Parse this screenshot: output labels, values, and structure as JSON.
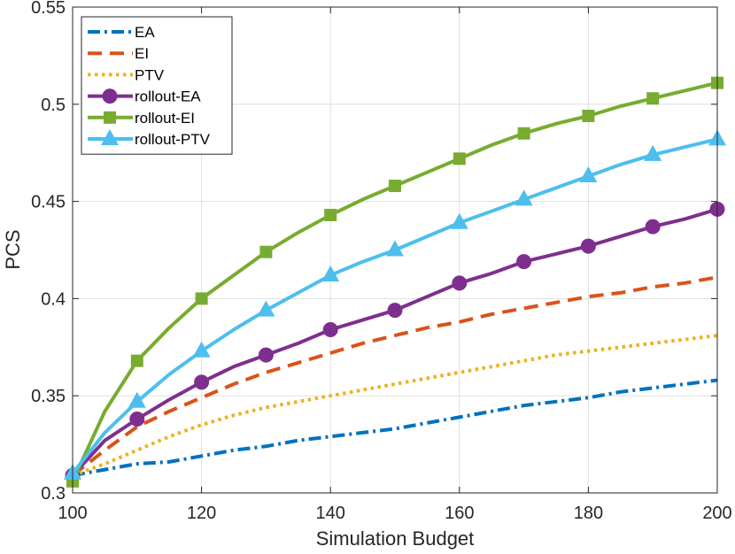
{
  "chart_data": {
    "type": "line",
    "title": "",
    "xlabel": "Simulation Budget",
    "ylabel": "PCS",
    "xlim": [
      100,
      200
    ],
    "ylim": [
      0.3,
      0.55
    ],
    "xticks": [
      100,
      120,
      140,
      160,
      180,
      200
    ],
    "xtick_labels": [
      "100",
      "120",
      "140",
      "160",
      "180",
      "200"
    ],
    "yticks": [
      0.3,
      0.35,
      0.4,
      0.45,
      0.5,
      0.55
    ],
    "ytick_labels": [
      "0.3",
      "0.35",
      "0.4",
      "0.45",
      "0.5",
      "0.55"
    ],
    "grid": true,
    "legend_position": "top-left",
    "x": [
      100,
      105,
      110,
      115,
      120,
      125,
      130,
      135,
      140,
      145,
      150,
      155,
      160,
      165,
      170,
      175,
      180,
      185,
      190,
      195,
      200
    ],
    "series": [
      {
        "name": "EA",
        "color": "#0072BD",
        "style": "dashdot",
        "marker": "none",
        "values": [
          0.309,
          0.312,
          0.315,
          0.316,
          0.319,
          0.322,
          0.324,
          0.327,
          0.329,
          0.331,
          0.333,
          0.336,
          0.339,
          0.342,
          0.345,
          0.347,
          0.349,
          0.352,
          0.354,
          0.356,
          0.358
        ]
      },
      {
        "name": "EI",
        "color": "#D95319",
        "style": "dashed",
        "marker": "none",
        "values": [
          0.309,
          0.322,
          0.334,
          0.342,
          0.349,
          0.356,
          0.362,
          0.367,
          0.372,
          0.377,
          0.381,
          0.385,
          0.388,
          0.392,
          0.395,
          0.398,
          0.401,
          0.403,
          0.406,
          0.408,
          0.411
        ]
      },
      {
        "name": "PTV",
        "color": "#EDB120",
        "style": "dotted",
        "marker": "none",
        "values": [
          0.309,
          0.315,
          0.322,
          0.329,
          0.335,
          0.34,
          0.344,
          0.347,
          0.35,
          0.353,
          0.356,
          0.359,
          0.362,
          0.365,
          0.368,
          0.371,
          0.373,
          0.375,
          0.377,
          0.379,
          0.381
        ]
      },
      {
        "name": "rollout-EA",
        "color": "#7E2F8E",
        "style": "solid",
        "marker": "circle",
        "values": [
          0.309,
          0.327,
          0.338,
          0.348,
          0.357,
          0.365,
          0.371,
          0.377,
          0.384,
          0.389,
          0.394,
          0.401,
          0.408,
          0.413,
          0.419,
          0.423,
          0.427,
          0.432,
          0.437,
          0.441,
          0.446
        ]
      },
      {
        "name": "rollout-EI",
        "color": "#77AC30",
        "style": "solid",
        "marker": "square",
        "values": [
          0.306,
          0.342,
          0.368,
          0.385,
          0.4,
          0.412,
          0.424,
          0.434,
          0.443,
          0.451,
          0.458,
          0.465,
          0.472,
          0.479,
          0.485,
          0.49,
          0.494,
          0.499,
          0.503,
          0.507,
          0.511
        ]
      },
      {
        "name": "rollout-PTV",
        "color": "#4DBEEE",
        "style": "solid",
        "marker": "triangle",
        "values": [
          0.31,
          0.331,
          0.347,
          0.361,
          0.373,
          0.384,
          0.394,
          0.403,
          0.412,
          0.419,
          0.425,
          0.432,
          0.439,
          0.445,
          0.451,
          0.457,
          0.463,
          0.469,
          0.474,
          0.478,
          0.482
        ]
      }
    ]
  }
}
